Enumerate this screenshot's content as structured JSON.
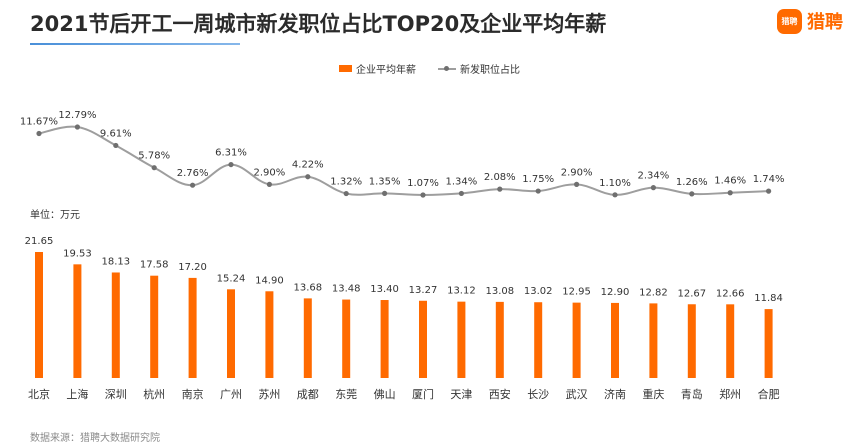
{
  "title": "2021节后开工一周城市新发职位占比TOP20及企业平均年薪",
  "logo": {
    "badge_text": "猎聘",
    "text": "猎聘",
    "icon": "liepin-logo-icon"
  },
  "unit_label": "单位：万元",
  "source": "数据来源：猎聘大数据研究院",
  "colors": {
    "bar": "#ff6a00",
    "line": "#9e9e9e",
    "marker": "#6f6f6f",
    "title_underline": "#4a90d9"
  },
  "chart_data": {
    "type": "bar",
    "categories": [
      "北京",
      "上海",
      "深圳",
      "杭州",
      "南京",
      "广州",
      "苏州",
      "成都",
      "东莞",
      "佛山",
      "厦门",
      "天津",
      "西安",
      "长沙",
      "武汉",
      "济南",
      "重庆",
      "青岛",
      "郑州",
      "合肥"
    ],
    "series": [
      {
        "name": "企业平均年薪",
        "type": "bar",
        "values": [
          21.65,
          19.53,
          18.13,
          17.58,
          17.2,
          15.24,
          14.9,
          13.68,
          13.48,
          13.4,
          13.27,
          13.12,
          13.08,
          13.02,
          12.95,
          12.9,
          12.82,
          12.67,
          12.66,
          11.84
        ],
        "labels": [
          "21.65",
          "19.53",
          "18.13",
          "17.58",
          "17.20",
          "15.24",
          "14.90",
          "13.68",
          "13.48",
          "13.40",
          "13.27",
          "13.12",
          "13.08",
          "13.02",
          "12.95",
          "12.90",
          "12.82",
          "12.67",
          "12.66",
          "11.84"
        ]
      },
      {
        "name": "新发职位占比",
        "type": "line",
        "unit": "%",
        "values": [
          11.67,
          12.79,
          9.61,
          5.78,
          2.76,
          6.31,
          2.9,
          4.22,
          1.32,
          1.35,
          1.07,
          1.34,
          2.08,
          1.75,
          2.9,
          1.1,
          2.34,
          1.26,
          1.46,
          1.74
        ],
        "labels": [
          "11.67%",
          "12.79%",
          "9.61%",
          "5.78%",
          "2.76%",
          "6.31%",
          "2.90%",
          "4.22%",
          "1.32%",
          "1.35%",
          "1.07%",
          "1.34%",
          "2.08%",
          "1.75%",
          "2.90%",
          "1.10%",
          "2.34%",
          "1.26%",
          "1.46%",
          "1.74%"
        ]
      }
    ],
    "legend": [
      "企业平均年薪",
      "新发职位占比"
    ],
    "legend_position": "top-center",
    "grid": false
  }
}
